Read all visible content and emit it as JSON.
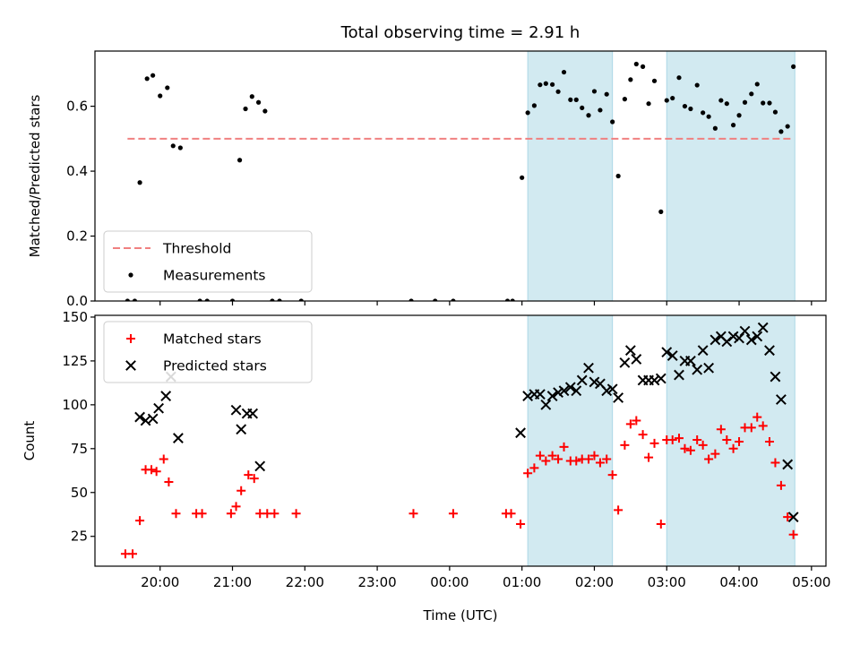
{
  "chart_data": [
    {
      "type": "scatter",
      "title": "Total observing time = 2.91 h",
      "xlabel": "",
      "ylabel": "Matched/Predicted stars",
      "x_unit": "hours since 00:00 UTC (negative = previous evening)",
      "xlim": [
        -4.9,
        5.2
      ],
      "ylim": [
        0.0,
        0.77
      ],
      "yticks": [
        0.0,
        0.2,
        0.4,
        0.6
      ],
      "ytick_labels": [
        "0.0",
        "0.2",
        "0.4",
        "0.6"
      ],
      "legend_position": "lower-left",
      "shaded_intervals": [
        [
          1.08,
          2.25
        ],
        [
          3.0,
          4.77
        ]
      ],
      "shade_color": "#add8e6",
      "threshold": {
        "name": "Threshold",
        "y": 0.5,
        "x_start": -4.45,
        "x_end": 4.75,
        "color": "#f08080"
      },
      "series": [
        {
          "name": "Measurements",
          "color": "#000000",
          "marker": "dot",
          "points": [
            [
              -4.45,
              0.0
            ],
            [
              -4.35,
              0.0
            ],
            [
              -4.28,
              0.365
            ],
            [
              -4.18,
              0.685
            ],
            [
              -4.1,
              0.695
            ],
            [
              -4.0,
              0.632
            ],
            [
              -3.9,
              0.657
            ],
            [
              -3.82,
              0.478
            ],
            [
              -3.72,
              0.472
            ],
            [
              -3.45,
              0.0
            ],
            [
              -3.35,
              0.0
            ],
            [
              -3.0,
              0.0
            ],
            [
              -2.9,
              0.434
            ],
            [
              -2.82,
              0.592
            ],
            [
              -2.73,
              0.63
            ],
            [
              -2.64,
              0.612
            ],
            [
              -2.55,
              0.585
            ],
            [
              -2.45,
              0.0
            ],
            [
              -2.35,
              0.0
            ],
            [
              -2.05,
              0.0
            ],
            [
              -0.53,
              0.0
            ],
            [
              0.05,
              0.0
            ],
            [
              -0.2,
              0.0
            ],
            [
              0.8,
              0.0
            ],
            [
              0.87,
              0.0
            ],
            [
              1.0,
              0.38
            ],
            [
              1.08,
              0.58
            ],
            [
              1.17,
              0.602
            ],
            [
              1.25,
              0.666
            ],
            [
              1.33,
              0.67
            ],
            [
              1.42,
              0.667
            ],
            [
              1.5,
              0.645
            ],
            [
              1.58,
              0.705
            ],
            [
              1.67,
              0.62
            ],
            [
              1.75,
              0.62
            ],
            [
              1.83,
              0.595
            ],
            [
              1.92,
              0.572
            ],
            [
              2.0,
              0.646
            ],
            [
              2.08,
              0.588
            ],
            [
              2.17,
              0.637
            ],
            [
              2.25,
              0.552
            ],
            [
              2.33,
              0.385
            ],
            [
              2.42,
              0.622
            ],
            [
              2.5,
              0.682
            ],
            [
              2.58,
              0.73
            ],
            [
              2.67,
              0.722
            ],
            [
              2.75,
              0.608
            ],
            [
              2.83,
              0.678
            ],
            [
              2.92,
              0.275
            ],
            [
              3.0,
              0.618
            ],
            [
              3.08,
              0.625
            ],
            [
              3.17,
              0.688
            ],
            [
              3.25,
              0.6
            ],
            [
              3.33,
              0.592
            ],
            [
              3.42,
              0.665
            ],
            [
              3.5,
              0.58
            ],
            [
              3.58,
              0.568
            ],
            [
              3.67,
              0.532
            ],
            [
              3.75,
              0.618
            ],
            [
              3.83,
              0.608
            ],
            [
              3.92,
              0.542
            ],
            [
              4.0,
              0.572
            ],
            [
              4.08,
              0.612
            ],
            [
              4.17,
              0.638
            ],
            [
              4.25,
              0.668
            ],
            [
              4.33,
              0.61
            ],
            [
              4.42,
              0.61
            ],
            [
              4.5,
              0.582
            ],
            [
              4.58,
              0.522
            ],
            [
              4.67,
              0.538
            ],
            [
              4.75,
              0.722
            ]
          ]
        }
      ]
    },
    {
      "type": "scatter",
      "title": "",
      "xlabel": "Time (UTC)",
      "ylabel": "Count",
      "x_unit": "hours since 00:00 UTC (negative = previous evening)",
      "xlim": [
        -4.9,
        5.2
      ],
      "ylim": [
        8,
        151
      ],
      "yticks": [
        25,
        50,
        75,
        100,
        125,
        150
      ],
      "ytick_labels": [
        "25",
        "50",
        "75",
        "100",
        "125",
        "150"
      ],
      "xticks": [
        -4.0,
        -3.0,
        -2.0,
        -1.0,
        0.0,
        1.0,
        2.0,
        3.0,
        4.0,
        5.0
      ],
      "xtick_labels": [
        "20:00",
        "21:00",
        "22:00",
        "23:00",
        "00:00",
        "01:00",
        "02:00",
        "03:00",
        "04:00",
        "05:00"
      ],
      "legend_position": "upper-left",
      "shaded_intervals": [
        [
          1.08,
          2.25
        ],
        [
          3.0,
          4.77
        ]
      ],
      "shade_color": "#add8e6",
      "series": [
        {
          "name": "Matched stars",
          "color": "#ff0000",
          "marker": "plus",
          "points": [
            [
              -4.48,
              15
            ],
            [
              -4.38,
              15
            ],
            [
              -4.28,
              34
            ],
            [
              -4.2,
              63
            ],
            [
              -4.12,
              63
            ],
            [
              -4.05,
              62
            ],
            [
              -3.95,
              69
            ],
            [
              -3.88,
              56
            ],
            [
              -3.78,
              38
            ],
            [
              -3.5,
              38
            ],
            [
              -3.42,
              38
            ],
            [
              -3.02,
              38
            ],
            [
              -2.95,
              42
            ],
            [
              -2.88,
              51
            ],
            [
              -2.78,
              60
            ],
            [
              -2.7,
              58
            ],
            [
              -2.62,
              38
            ],
            [
              -2.52,
              38
            ],
            [
              -2.42,
              38
            ],
            [
              -2.12,
              38
            ],
            [
              -0.5,
              38
            ],
            [
              0.05,
              38
            ],
            [
              0.78,
              38
            ],
            [
              0.85,
              38
            ],
            [
              0.98,
              32
            ],
            [
              1.08,
              61
            ],
            [
              1.17,
              64
            ],
            [
              1.25,
              71
            ],
            [
              1.33,
              68
            ],
            [
              1.42,
              71
            ],
            [
              1.5,
              69
            ],
            [
              1.58,
              76
            ],
            [
              1.67,
              68
            ],
            [
              1.75,
              68
            ],
            [
              1.83,
              69
            ],
            [
              1.92,
              69
            ],
            [
              2.0,
              71
            ],
            [
              2.08,
              67
            ],
            [
              2.17,
              69
            ],
            [
              2.25,
              60
            ],
            [
              2.33,
              40
            ],
            [
              2.42,
              77
            ],
            [
              2.5,
              89
            ],
            [
              2.58,
              91
            ],
            [
              2.67,
              83
            ],
            [
              2.75,
              70
            ],
            [
              2.83,
              78
            ],
            [
              2.92,
              32
            ],
            [
              3.0,
              80
            ],
            [
              3.08,
              80
            ],
            [
              3.17,
              81
            ],
            [
              3.25,
              75
            ],
            [
              3.33,
              74
            ],
            [
              3.42,
              80
            ],
            [
              3.5,
              77
            ],
            [
              3.58,
              69
            ],
            [
              3.67,
              72
            ],
            [
              3.75,
              86
            ],
            [
              3.83,
              80
            ],
            [
              3.92,
              75
            ],
            [
              4.0,
              79
            ],
            [
              4.08,
              87
            ],
            [
              4.17,
              87
            ],
            [
              4.25,
              93
            ],
            [
              4.33,
              88
            ],
            [
              4.42,
              79
            ],
            [
              4.5,
              67
            ],
            [
              4.58,
              54
            ],
            [
              4.67,
              36
            ],
            [
              4.75,
              26
            ]
          ]
        },
        {
          "name": "Predicted stars",
          "color": "#000000",
          "marker": "x",
          "points": [
            [
              -4.28,
              93
            ],
            [
              -4.2,
              91
            ],
            [
              -4.1,
              92
            ],
            [
              -4.02,
              98
            ],
            [
              -3.92,
              105
            ],
            [
              -3.85,
              116
            ],
            [
              -3.75,
              81
            ],
            [
              -2.95,
              97
            ],
            [
              -2.88,
              86
            ],
            [
              -2.8,
              95
            ],
            [
              -2.72,
              95
            ],
            [
              -2.62,
              65
            ],
            [
              0.98,
              84
            ],
            [
              1.08,
              105
            ],
            [
              1.17,
              106
            ],
            [
              1.25,
              106
            ],
            [
              1.33,
              100
            ],
            [
              1.42,
              105
            ],
            [
              1.5,
              107
            ],
            [
              1.58,
              108
            ],
            [
              1.67,
              110
            ],
            [
              1.75,
              108
            ],
            [
              1.83,
              114
            ],
            [
              1.92,
              121
            ],
            [
              2.0,
              113
            ],
            [
              2.08,
              112
            ],
            [
              2.17,
              108
            ],
            [
              2.25,
              109
            ],
            [
              2.33,
              104
            ],
            [
              2.42,
              124
            ],
            [
              2.5,
              131
            ],
            [
              2.58,
              126
            ],
            [
              2.67,
              114
            ],
            [
              2.75,
              114
            ],
            [
              2.83,
              114
            ],
            [
              2.92,
              115
            ],
            [
              3.0,
              130
            ],
            [
              3.08,
              128
            ],
            [
              3.17,
              117
            ],
            [
              3.25,
              125
            ],
            [
              3.33,
              125
            ],
            [
              3.42,
              120
            ],
            [
              3.5,
              131
            ],
            [
              3.58,
              121
            ],
            [
              3.67,
              137
            ],
            [
              3.75,
              139
            ],
            [
              3.83,
              136
            ],
            [
              3.92,
              139
            ],
            [
              4.0,
              138
            ],
            [
              4.08,
              142
            ],
            [
              4.17,
              137
            ],
            [
              4.25,
              139
            ],
            [
              4.33,
              144
            ],
            [
              4.42,
              131
            ],
            [
              4.5,
              116
            ],
            [
              4.58,
              103
            ],
            [
              4.67,
              66
            ],
            [
              4.75,
              36
            ]
          ]
        }
      ]
    }
  ]
}
